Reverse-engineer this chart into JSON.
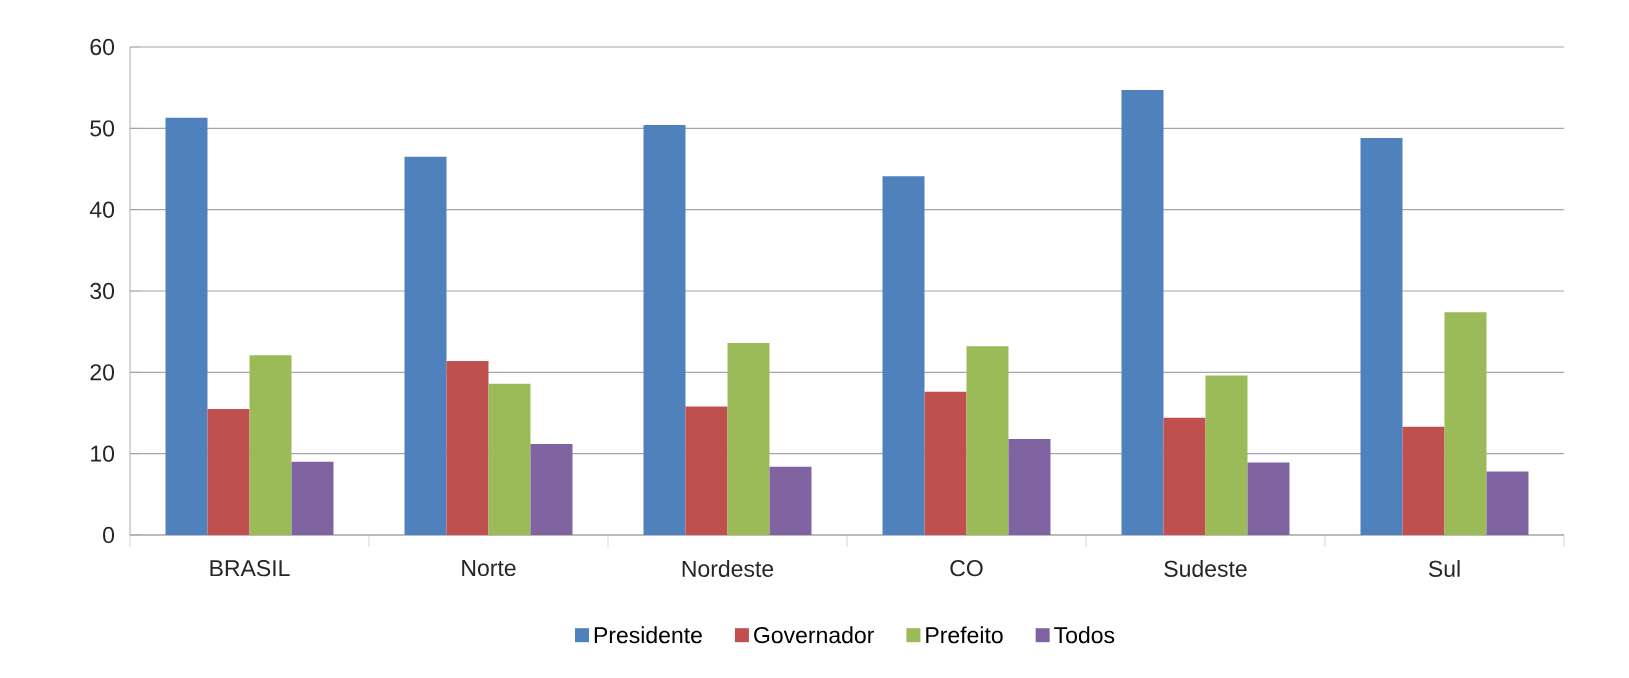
{
  "chart_data": {
    "type": "bar",
    "categories": [
      "BRASIL",
      "Norte",
      "Nordeste",
      "CO",
      "Sudeste",
      "Sul"
    ],
    "series": [
      {
        "name": "Presidente",
        "color": "#4f81bd",
        "values": [
          51.3,
          46.5,
          50.4,
          44.1,
          54.7,
          48.8
        ]
      },
      {
        "name": "Governador",
        "color": "#c0504d",
        "values": [
          15.5,
          21.4,
          15.8,
          17.6,
          14.4,
          13.3
        ]
      },
      {
        "name": "Prefeito",
        "color": "#9bbb59",
        "values": [
          22.1,
          18.6,
          23.6,
          23.2,
          19.6,
          27.4
        ]
      },
      {
        "name": "Todos",
        "color": "#8064a2",
        "values": [
          9.0,
          11.2,
          8.4,
          11.8,
          8.9,
          7.8
        ]
      }
    ],
    "ylim": [
      0,
      60
    ],
    "yticks": [
      0,
      10,
      20,
      30,
      40,
      50,
      60
    ],
    "grid": "y",
    "legend": "bottom"
  }
}
